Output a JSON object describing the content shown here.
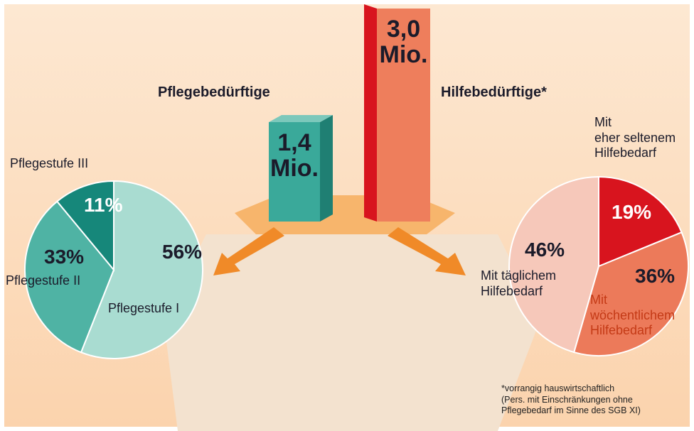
{
  "chart_data": [
    {
      "type": "bar",
      "categories": [
        "Pflegebedürftige",
        "Hilfebedürftige*"
      ],
      "values": [
        1.4,
        3.0
      ],
      "value_labels": [
        "1,4\nMio.",
        "3,0\nMio."
      ],
      "colors": [
        "#3aa99a",
        "#ee7e5c"
      ]
    },
    {
      "type": "pie",
      "categories": [
        "Pflegestufe I",
        "Pflegestufe II",
        "Pflegestufe III"
      ],
      "values": [
        56,
        33,
        11
      ],
      "value_labels": [
        "56%",
        "33%",
        "11%"
      ],
      "colors": [
        "#a9dcd1",
        "#4fb3a4",
        "#16877a"
      ]
    },
    {
      "type": "pie",
      "categories": [
        "Mit\neher seltenem\nHilfebedarf",
        "Mit\nwöchentlichem\nHilfebedarf",
        "Mit täglichem\nHilfebedarf"
      ],
      "values": [
        19,
        36,
        46
      ],
      "value_labels": [
        "19%",
        "36%",
        "46%"
      ],
      "colors": [
        "#d8141e",
        "#ec7a5a",
        "#f6c8ba"
      ]
    }
  ],
  "footnote": "*vorrangig hauswirtschaftlich\n(Pers. mit Einschränkungen ohne\nPflegebedarf im Sinne des SGB XI)"
}
